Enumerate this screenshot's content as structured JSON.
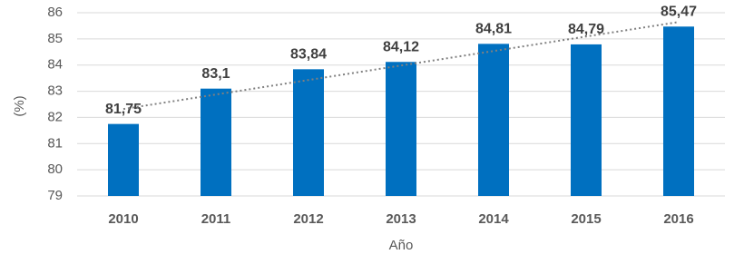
{
  "chart_data": {
    "type": "bar",
    "categories": [
      "2010",
      "2011",
      "2012",
      "2013",
      "2014",
      "2015",
      "2016"
    ],
    "values": [
      81.75,
      83.1,
      83.84,
      84.12,
      84.81,
      84.79,
      85.47
    ],
    "value_labels": [
      "81,75",
      "83,1",
      "83,84",
      "84,12",
      "84,81",
      "84,79",
      "85,47"
    ],
    "color": "#0070c0",
    "ylim": [
      79,
      86
    ],
    "yticks": [
      79,
      80,
      81,
      82,
      83,
      84,
      85,
      86
    ],
    "grid": true,
    "trendline": true,
    "x_label": "Año",
    "y_label": "(%)"
  }
}
